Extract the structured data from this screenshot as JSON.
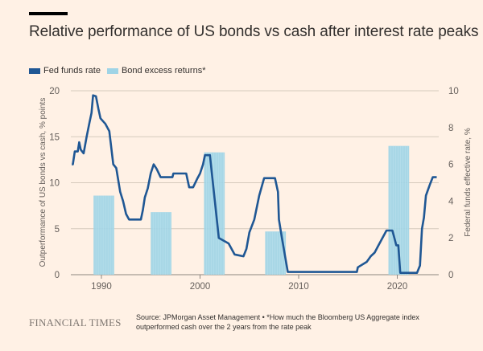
{
  "header": {
    "title": "Relative performance of US bonds vs cash after interest rate peaks"
  },
  "legend": [
    {
      "label": "Fed funds rate",
      "color": "#1f5794"
    },
    {
      "label": "Bond excess returns*",
      "color": "#9fd4e6"
    }
  ],
  "footer": {
    "brand": "FINANCIAL TIMES",
    "source_line1": "Source: JPMorgan Asset Management • *How much the Bloomberg US Aggregate index",
    "source_line2": "outperformed cash over the 2 years from the rate peak"
  },
  "chart_data": {
    "type": "bar+line",
    "title": "Relative performance of US bonds vs cash after interest rate peaks",
    "xlabel": "",
    "ylabel_left": "Outperformance of US bonds vs cash, % points",
    "ylabel_right": "Federal funds effective rate, %",
    "xlim": [
      1986.9,
      2024.2
    ],
    "ylim_left": [
      0,
      20
    ],
    "ylim_right": [
      0,
      10
    ],
    "x_ticks": [
      "1990",
      "2000",
      "2010",
      "2020"
    ],
    "x_tick_values": [
      1990,
      2000,
      2010,
      2020
    ],
    "y_ticks_left": [
      "0",
      "5",
      "10",
      "15",
      "20"
    ],
    "y_tick_values_left": [
      0,
      5,
      10,
      15,
      20
    ],
    "y_ticks_right": [
      "0",
      "2",
      "4",
      "6",
      "8",
      "10"
    ],
    "y_tick_values_right": [
      0,
      2,
      4,
      6,
      8,
      10
    ],
    "grid": true,
    "legend_position": "top-left",
    "bars": {
      "name": "Bond excess returns*",
      "axis": "left",
      "items": [
        {
          "start": 1989.2,
          "end": 1991.3,
          "value": 8.6
        },
        {
          "start": 1995.0,
          "end": 1997.1,
          "value": 6.8
        },
        {
          "start": 2000.4,
          "end": 2002.5,
          "value": 13.3
        },
        {
          "start": 2006.6,
          "end": 2008.7,
          "value": 4.7
        },
        {
          "start": 2019.1,
          "end": 2021.2,
          "value": 14.0
        }
      ]
    },
    "series": [
      {
        "name": "Fed funds rate",
        "axis": "right",
        "points": [
          [
            1987.0,
            6.0
          ],
          [
            1987.1,
            6.0
          ],
          [
            1987.3,
            6.7
          ],
          [
            1987.6,
            6.7
          ],
          [
            1987.75,
            7.2
          ],
          [
            1987.9,
            6.8
          ],
          [
            1988.2,
            6.6
          ],
          [
            1988.5,
            7.5
          ],
          [
            1988.8,
            8.3
          ],
          [
            1989.0,
            8.8
          ],
          [
            1989.15,
            9.75
          ],
          [
            1989.45,
            9.7
          ],
          [
            1989.7,
            9.0
          ],
          [
            1989.9,
            8.5
          ],
          [
            1990.4,
            8.2
          ],
          [
            1990.8,
            7.8
          ],
          [
            1991.2,
            6.0
          ],
          [
            1991.5,
            5.8
          ],
          [
            1991.9,
            4.5
          ],
          [
            1992.2,
            4.0
          ],
          [
            1992.5,
            3.3
          ],
          [
            1992.8,
            3.0
          ],
          [
            1994.0,
            3.0
          ],
          [
            1994.2,
            3.5
          ],
          [
            1994.4,
            4.2
          ],
          [
            1994.7,
            4.7
          ],
          [
            1995.0,
            5.5
          ],
          [
            1995.3,
            6.0
          ],
          [
            1995.6,
            5.75
          ],
          [
            1996.0,
            5.3
          ],
          [
            1997.2,
            5.3
          ],
          [
            1997.3,
            5.5
          ],
          [
            1998.6,
            5.5
          ],
          [
            1998.9,
            4.75
          ],
          [
            1999.3,
            4.75
          ],
          [
            1999.7,
            5.2
          ],
          [
            2000.0,
            5.5
          ],
          [
            2000.3,
            6.0
          ],
          [
            2000.5,
            6.5
          ],
          [
            2001.0,
            6.5
          ],
          [
            2001.2,
            5.5
          ],
          [
            2001.5,
            4.0
          ],
          [
            2001.9,
            2.0
          ],
          [
            2002.9,
            1.7
          ],
          [
            2003.5,
            1.1
          ],
          [
            2004.4,
            1.0
          ],
          [
            2004.7,
            1.4
          ],
          [
            2005.0,
            2.3
          ],
          [
            2005.5,
            3.0
          ],
          [
            2006.0,
            4.3
          ],
          [
            2006.5,
            5.25
          ],
          [
            2007.6,
            5.25
          ],
          [
            2007.9,
            4.5
          ],
          [
            2008.0,
            3.0
          ],
          [
            2008.3,
            2.0
          ],
          [
            2008.9,
            0.15
          ],
          [
            2015.9,
            0.15
          ],
          [
            2016.0,
            0.4
          ],
          [
            2016.9,
            0.7
          ],
          [
            2017.3,
            1.0
          ],
          [
            2017.7,
            1.2
          ],
          [
            2018.0,
            1.5
          ],
          [
            2018.4,
            1.9
          ],
          [
            2018.9,
            2.4
          ],
          [
            2019.5,
            2.4
          ],
          [
            2019.7,
            2.0
          ],
          [
            2019.9,
            1.6
          ],
          [
            2020.1,
            1.6
          ],
          [
            2020.3,
            0.1
          ],
          [
            2022.0,
            0.1
          ],
          [
            2022.3,
            0.5
          ],
          [
            2022.5,
            2.5
          ],
          [
            2022.7,
            3.1
          ],
          [
            2022.9,
            4.3
          ],
          [
            2023.3,
            4.9
          ],
          [
            2023.6,
            5.3
          ],
          [
            2024.0,
            5.3
          ]
        ]
      }
    ]
  }
}
